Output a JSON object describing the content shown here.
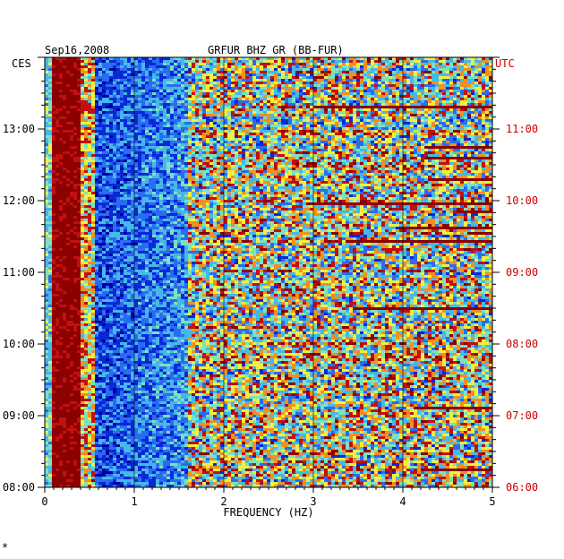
{
  "header": {
    "date": "Sep16,2008",
    "station": "GRFUR BHZ GR (BB-FUR)",
    "left_tz": "CES",
    "right_tz": "UTC"
  },
  "footer_mark": "*",
  "colors": {
    "right_axis": "#cc0000",
    "palette": [
      "#0000a0",
      "#0a28d8",
      "#2a6cf0",
      "#46b8e8",
      "#7fe0c0",
      "#f0f040",
      "#f09020",
      "#c01010",
      "#8c0000"
    ]
  },
  "chart_data": {
    "type": "heatmap",
    "title": "GRFUR BHZ GR (BB-FUR)",
    "subtitle": "Sep16,2008",
    "xlabel": "FREQUENCY (HZ)",
    "ylabel_left": "CES",
    "ylabel_right": "UTC",
    "xlim": [
      0,
      5
    ],
    "x_ticks": [
      "0",
      "1",
      "2",
      "3",
      "4",
      "5"
    ],
    "y_ticks_left": [
      "08:00",
      "09:00",
      "10:00",
      "11:00",
      "12:00",
      "13:00"
    ],
    "y_ticks_right": [
      "06:00",
      "07:00",
      "08:00",
      "09:00",
      "10:00",
      "11:00"
    ],
    "time_range_ces": [
      "08:00",
      "14:00"
    ],
    "description_bands": [
      {
        "freq_range": [
          0.0,
          0.5
        ],
        "intensity": "high"
      },
      {
        "freq_range": [
          0.5,
          1.6
        ],
        "intensity": "low"
      },
      {
        "freq_range": [
          1.6,
          5.0
        ],
        "intensity": "mixed"
      }
    ],
    "grid": false
  }
}
